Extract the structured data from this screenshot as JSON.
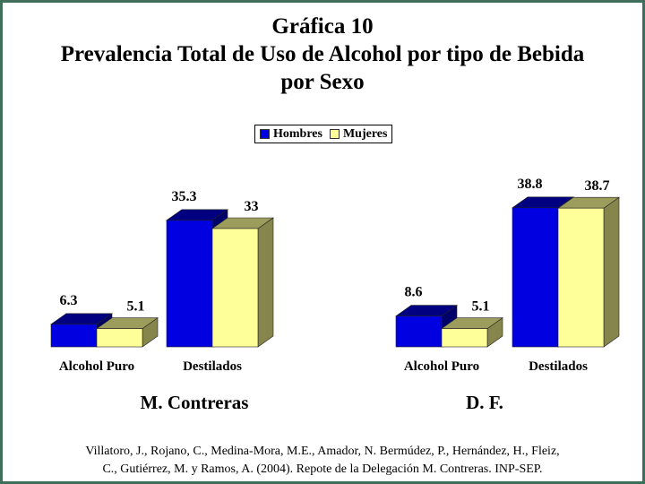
{
  "title": {
    "line1": "Gráfica 10",
    "line2": "Prevalencia Total de Uso de Alcohol por tipo de Bebida",
    "line3": "por Sexo"
  },
  "legend": {
    "hombres": "Hombres",
    "mujeres": "Mujeres"
  },
  "colors": {
    "hombres_front": "#0000e0",
    "hombres_top": "#000080",
    "hombres_side": "#00006a",
    "mujeres_front": "#ffff99",
    "mujeres_top": "#9c9c5c",
    "mujeres_side": "#86864c",
    "frame": "#3f6e5a"
  },
  "chart_data": [
    {
      "type": "bar",
      "title": "M. Contreras",
      "categories": [
        "Alcohol Puro",
        "Destilados"
      ],
      "series": [
        {
          "name": "Hombres",
          "values": [
            6.3,
            35.3
          ]
        },
        {
          "name": "Mujeres",
          "values": [
            5.1,
            33
          ]
        }
      ],
      "labels": [
        [
          "6.3",
          "35.3"
        ],
        [
          "5.1",
          "33"
        ]
      ]
    },
    {
      "type": "bar",
      "title": "D. F.",
      "categories": [
        "Alcohol Puro",
        "Destilados"
      ],
      "series": [
        {
          "name": "Hombres",
          "values": [
            8.6,
            38.8
          ]
        },
        {
          "name": "Mujeres",
          "values": [
            5.1,
            38.7
          ]
        }
      ],
      "labels": [
        [
          "8.6",
          "38.8"
        ],
        [
          "5.1",
          "38.7"
        ]
      ]
    }
  ],
  "source": {
    "line1": "Villatoro, J., Rojano, C., Medina-Mora, M.E., Amador, N. Bermúdez, P., Hernández, H., Fleiz,",
    "line2": "C., Gutiérrez, M. y Ramos, A. (2004). Repote de la Delegación M. Contreras. INP-SEP."
  }
}
